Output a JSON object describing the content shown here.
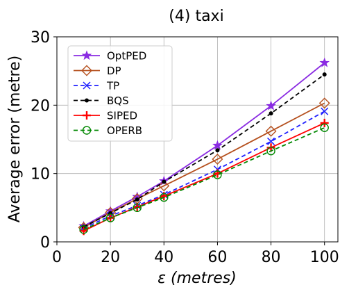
{
  "chart_data": {
    "type": "line",
    "title": "(4) taxi",
    "xlabel_prefix": "ε ",
    "xlabel_unit": "(metres)",
    "ylabel": "Average error (metre)",
    "xlim": [
      0,
      105
    ],
    "ylim": [
      0,
      30
    ],
    "x_ticks": [
      0,
      20,
      40,
      60,
      80,
      100
    ],
    "y_ticks": [
      0,
      10,
      20,
      30
    ],
    "grid": true,
    "legend_position": "top-left",
    "x": [
      10,
      20,
      30,
      40,
      60,
      80,
      100
    ],
    "series": [
      {
        "name": "OptPED",
        "color": "#8a2be2",
        "dash": "solid",
        "marker": "star",
        "values": [
          2.3,
          4.5,
          6.6,
          8.9,
          14.1,
          19.9,
          26.2
        ]
      },
      {
        "name": "DP",
        "color": "#b5501e",
        "dash": "solid",
        "marker": "diamond",
        "values": [
          2.1,
          4.3,
          6.3,
          8.2,
          12.1,
          16.2,
          20.3
        ]
      },
      {
        "name": "TP",
        "color": "#1f1fff",
        "dash": "dashed",
        "marker": "x",
        "values": [
          2.0,
          3.8,
          5.3,
          6.9,
          10.6,
          14.7,
          19.1
        ]
      },
      {
        "name": "BQS",
        "color": "#000000",
        "dash": "dashed",
        "marker": "dot",
        "values": [
          2.2,
          4.2,
          6.2,
          8.8,
          13.4,
          18.8,
          24.5
        ]
      },
      {
        "name": "SIPED",
        "color": "#ff0000",
        "dash": "solid",
        "marker": "plus",
        "values": [
          1.6,
          3.5,
          5.1,
          6.7,
          10.0,
          13.8,
          17.4
        ]
      },
      {
        "name": "OPERB",
        "color": "#008800",
        "dash": "dashed",
        "marker": "circle",
        "values": [
          1.8,
          3.5,
          5.0,
          6.5,
          9.8,
          13.3,
          16.7
        ]
      }
    ]
  }
}
